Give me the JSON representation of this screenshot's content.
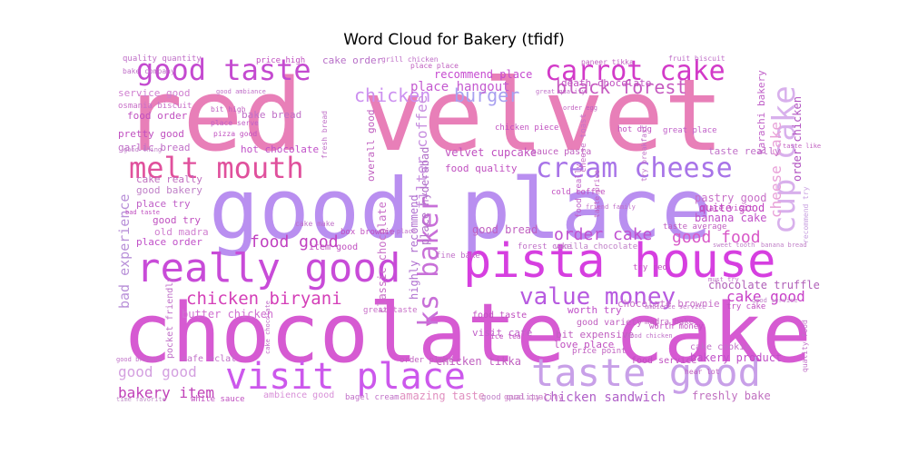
{
  "chart_data": {
    "type": "wordcloud",
    "title": "Word Cloud for Bakery (tfidf)",
    "words": [
      {
        "text": "red velvet",
        "color": "#e87fb8"
      },
      {
        "text": "good place",
        "color": "#b98ff0"
      },
      {
        "text": "chocolate cake",
        "color": "#d65ad2"
      },
      {
        "text": "pista house",
        "color": "#d63fe0"
      },
      {
        "text": "really good",
        "color": "#c84bd8"
      },
      {
        "text": "visit place",
        "color": "#cc58ec"
      },
      {
        "text": "taste good",
        "color": "#c8a0e8"
      },
      {
        "text": "melt mouth",
        "color": "#e0509c"
      },
      {
        "text": "cream cheese",
        "color": "#a874e8"
      },
      {
        "text": "good taste",
        "color": "#c44ad0"
      },
      {
        "text": "carrot cake",
        "color": "#d23ac8"
      },
      {
        "text": "cup cake",
        "color": "#d8b0ec"
      },
      {
        "text": "value money",
        "color": "#b75ae0"
      },
      {
        "text": "chicken biryani",
        "color": "#d43fb8"
      },
      {
        "text": "black forest",
        "color": "#c65ac0"
      },
      {
        "text": "ks baker",
        "color": "#c870d8"
      },
      {
        "text": "chicken",
        "color": "#cc90f0"
      },
      {
        "text": "burger",
        "color": "#a8a0f0"
      },
      {
        "text": "food good",
        "color": "#c040c0"
      },
      {
        "text": "good food",
        "color": "#d858c8"
      },
      {
        "text": "order cake",
        "color": "#c050d0"
      },
      {
        "text": "bakery item",
        "color": "#c040b8"
      },
      {
        "text": "good good",
        "color": "#d4a0e0"
      },
      {
        "text": "cheese cake",
        "color": "#e8a0d8"
      },
      {
        "text": "cake good",
        "color": "#c840c8"
      },
      {
        "text": "chicken sandwich",
        "color": "#b060c8"
      },
      {
        "text": "bad experience",
        "color": "#b890d8"
      },
      {
        "text": "place hangout",
        "color": "#c45ad0"
      },
      {
        "text": "recommend place",
        "color": "#c64ad0"
      },
      {
        "text": "velvet cupcake",
        "color": "#c050c0"
      },
      {
        "text": "filter coffee",
        "color": "#c890e0"
      },
      {
        "text": "highly recommend",
        "color": "#b070d0"
      },
      {
        "text": "place hyderabad",
        "color": "#b070c8"
      },
      {
        "text": "good bread",
        "color": "#c060c0"
      },
      {
        "text": "banana cake",
        "color": "#c050c8"
      },
      {
        "text": "quite good",
        "color": "#c040c0"
      },
      {
        "text": "pastry good",
        "color": "#c870c8"
      },
      {
        "text": "butter chicken",
        "color": "#d070d0"
      },
      {
        "text": "chocolate truffle",
        "color": "#b060b8"
      },
      {
        "text": "chocolate brownie",
        "color": "#c870c8"
      },
      {
        "text": "freshly bake",
        "color": "#c070c0"
      },
      {
        "text": "amazing taste",
        "color": "#e090c0"
      },
      {
        "text": "bakery product",
        "color": "#c050c8"
      },
      {
        "text": "chicken tikka",
        "color": "#c060c0"
      },
      {
        "text": "classic chocolate",
        "color": "#c870c8"
      },
      {
        "text": "order chicken",
        "color": "#b050c0"
      },
      {
        "text": "good try",
        "color": "#c050c0"
      },
      {
        "text": "old madra",
        "color": "#d080d0"
      },
      {
        "text": "place order",
        "color": "#c050c8"
      },
      {
        "text": "cake really",
        "color": "#c070c0"
      },
      {
        "text": "good bakery",
        "color": "#c080c8"
      },
      {
        "text": "place try",
        "color": "#c060c8"
      },
      {
        "text": "garlic bread",
        "color": "#c070c8"
      },
      {
        "text": "pretty good",
        "color": "#c050c0"
      },
      {
        "text": "food order",
        "color": "#c050c0"
      },
      {
        "text": "bake bread",
        "color": "#c070c8"
      },
      {
        "text": "service good",
        "color": "#d080d0"
      },
      {
        "text": "osmania biscuit",
        "color": "#c870c8"
      },
      {
        "text": "hot chocolate",
        "color": "#c050c8"
      },
      {
        "text": "overall good",
        "color": "#c060c0"
      },
      {
        "text": "cake order",
        "color": "#b870c8"
      },
      {
        "text": "price high",
        "color": "#c050c0"
      },
      {
        "text": "quality quantity",
        "color": "#c070c8"
      },
      {
        "text": "death chocolate",
        "color": "#c050c0"
      },
      {
        "text": "food quality",
        "color": "#c050c0"
      },
      {
        "text": "sauce pasta",
        "color": "#c060c0"
      },
      {
        "text": "taste really",
        "color": "#c070c8"
      },
      {
        "text": "karachi bakery",
        "color": "#c060c8"
      },
      {
        "text": "worth try",
        "color": "#c050c8"
      },
      {
        "text": "good quality",
        "color": "#d080c8"
      },
      {
        "text": "love place",
        "color": "#c050c0"
      },
      {
        "text": "bit expensive",
        "color": "#c060c0"
      },
      {
        "text": "visit cafe",
        "color": "#c060c8"
      },
      {
        "text": "food taste",
        "color": "#c050c0"
      },
      {
        "text": "great taste",
        "color": "#c870c8"
      },
      {
        "text": "cafe eclat",
        "color": "#c070c8"
      },
      {
        "text": "pocket friendly",
        "color": "#c070c8"
      },
      {
        "text": "ambience good",
        "color": "#d890d8"
      },
      {
        "text": "white sauce",
        "color": "#c050c0"
      },
      {
        "text": "cake cookie",
        "color": "#c070c8"
      },
      {
        "text": "food service",
        "color": "#c050c0"
      },
      {
        "text": "good variety",
        "color": "#c060c0"
      },
      {
        "text": "item good",
        "color": "#c050c0"
      },
      {
        "text": "box brownie",
        "color": "#c050c0"
      },
      {
        "text": "fine bake",
        "color": "#c070c8"
      },
      {
        "text": "forest cake",
        "color": "#c070c8"
      },
      {
        "text": "vanilla chocolate",
        "color": "#c080c8"
      },
      {
        "text": "try red",
        "color": "#c050c0"
      },
      {
        "text": "taste average",
        "color": "#c060c0"
      },
      {
        "text": "cold coffee",
        "color": "#c050c0"
      },
      {
        "text": "great place",
        "color": "#c060c8"
      },
      {
        "text": "place visit",
        "color": "#c050c0"
      },
      {
        "text": "food really",
        "color": "#c060c8"
      },
      {
        "text": "chicken piece",
        "color": "#c050c0"
      },
      {
        "text": "hot dog",
        "color": "#c050c0"
      },
      {
        "text": "cheese toast",
        "color": "#c870c8"
      },
      {
        "text": "bagel cream",
        "color": "#c070c8"
      },
      {
        "text": "good quality",
        "color": "#c080c8"
      },
      {
        "text": "worth money",
        "color": "#c050c0"
      },
      {
        "text": "madra bake",
        "color": "#c060c0"
      },
      {
        "text": "try cake",
        "color": "#c050c0"
      },
      {
        "text": "price point",
        "color": "#c060c0"
      },
      {
        "text": "quality food",
        "color": "#c070c8"
      },
      {
        "text": "ice tea",
        "color": "#c050c0"
      },
      {
        "text": "order place",
        "color": "#c060c0"
      },
      {
        "text": "grill chicken",
        "color": "#c070c8"
      },
      {
        "text": "place place",
        "color": "#c060c0"
      },
      {
        "text": "fruit biscuit",
        "color": "#c070c8"
      },
      {
        "text": "bake company",
        "color": "#c070c8"
      },
      {
        "text": "bit high",
        "color": "#c060c0"
      },
      {
        "text": "fresh bread",
        "color": "#c070c8"
      },
      {
        "text": "pizza good",
        "color": "#c050c0"
      },
      {
        "text": "place serve",
        "color": "#c060c8"
      },
      {
        "text": "good thing",
        "color": "#c080c8"
      },
      {
        "text": "taste price",
        "color": "#c060c0"
      },
      {
        "text": "try breakfast",
        "color": "#c070c8"
      },
      {
        "text": "good chicken",
        "color": "#c070c8"
      },
      {
        "text": "hear lot",
        "color": "#c060c0"
      },
      {
        "text": "recommend try",
        "color": "#c8a0e0"
      },
      {
        "text": "taste like",
        "color": "#c060c0"
      },
      {
        "text": "sweet tooth",
        "color": "#c080c8"
      },
      {
        "text": "banana bread",
        "color": "#c080c8"
      },
      {
        "text": "friend family",
        "color": "#c070c8"
      },
      {
        "text": "bad taste",
        "color": "#c050c0"
      },
      {
        "text": "cake make",
        "color": "#c070c8"
      },
      {
        "text": "cake chocolate",
        "color": "#c070c8"
      },
      {
        "text": "good brownie",
        "color": "#c070c8"
      },
      {
        "text": "time favorite",
        "color": "#c090c8"
      },
      {
        "text": "ambience service",
        "color": "#c070c8"
      },
      {
        "text": "good service",
        "color": "#c080c8"
      },
      {
        "text": "good ambiance",
        "color": "#c070c8"
      },
      {
        "text": "try place",
        "color": "#c070c8"
      },
      {
        "text": "paneer tikka",
        "color": "#c060c0"
      },
      {
        "text": "order egg",
        "color": "#c060c0"
      },
      {
        "text": "great quality",
        "color": "#c070c8"
      },
      {
        "text": "must try",
        "color": "#c070c8"
      }
    ]
  }
}
